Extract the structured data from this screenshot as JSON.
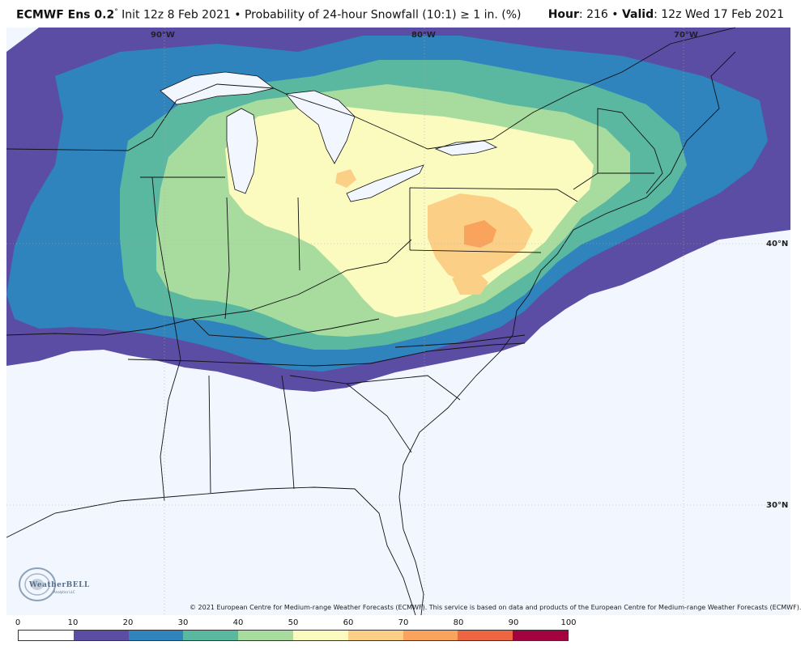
{
  "header": {
    "model": "ECMWF Ens 0.2",
    "degree": "°",
    "init": " Init 12z 8 Feb 2021",
    "bullet": " • ",
    "product": "Probability of 24-hour Snowfall (10:1) ≥ 1 in. (%)",
    "hour_label": "Hour",
    "hour_value": ": 216 • ",
    "valid_label": "Valid",
    "valid_value": ": 12z Wed 17 Feb 2021"
  },
  "map": {
    "lon_labels": [
      "90°W",
      "80°W",
      "70°W"
    ],
    "lat_labels": [
      "40°N",
      "30°N"
    ],
    "copyright": "© 2021 European Centre for Medium-range Weather Forecasts (ECMWF). This service is based on data and products of the European Centre for Medium-range Weather Forecasts (ECMWF).",
    "logo_text": "WeatherBELL",
    "logo_sub": "Analytics LLC"
  },
  "colorbar": {
    "ticks": [
      "0",
      "10",
      "20",
      "30",
      "40",
      "50",
      "60",
      "70",
      "80",
      "90",
      "100"
    ],
    "colors": [
      "#ffffff",
      "#5b4da3",
      "#2f84bd",
      "#5ab8a0",
      "#a8dc9e",
      "#fbfbbf",
      "#fccf87",
      "#f9a35c",
      "#ee6541",
      "#a3033f"
    ],
    "ocean": "#f1f6ff",
    "border": "#111111"
  }
}
